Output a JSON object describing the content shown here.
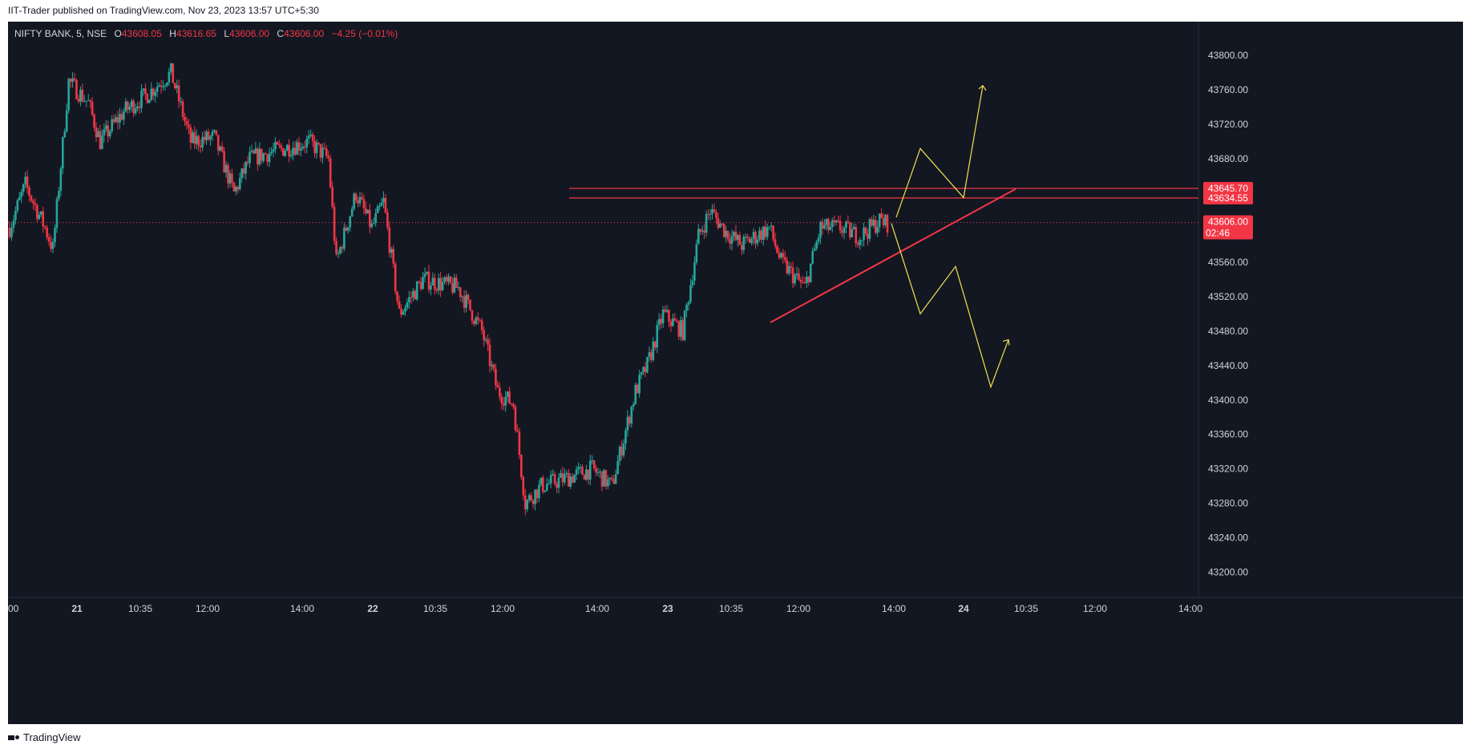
{
  "header": {
    "published": "IIT-Trader published on TradingView.com, Nov 23, 2023 13:57 UTC+5:30"
  },
  "legend": {
    "symbol": "NIFTY BANK, 5, NSE",
    "o_label": "O",
    "o_value": "43608.05",
    "h_label": "H",
    "h_value": "43616.65",
    "l_label": "L",
    "l_value": "43606.00",
    "c_label": "C",
    "c_value": "43606.00",
    "change": "−4.25 (−0.01%)"
  },
  "footer": {
    "brand": "TradingView",
    "logo_icon": "tradingview-logo-icon"
  },
  "colors": {
    "background": "#131722",
    "up": "#26a69a",
    "down": "#f23645",
    "axis_text": "#d1d4dc",
    "annotation": "#f2e34d",
    "level": "#f23645"
  },
  "chart_data": {
    "type": "candlestick",
    "symbol": "NIFTY BANK",
    "timeframe": "5",
    "exchange": "NSE",
    "ylim": [
      43180,
      43830
    ],
    "y_ticks": [
      "43800.00",
      "43760.00",
      "43720.00",
      "43680.00",
      "43640.00",
      "43600.00",
      "43560.00",
      "43520.00",
      "43480.00",
      "43440.00",
      "43400.00",
      "43360.00",
      "43320.00",
      "43280.00",
      "43240.00",
      "43200.00"
    ],
    "x_ticks": [
      "00",
      "21",
      "10:35",
      "12:00",
      "14:00",
      "22",
      "10:35",
      "12:00",
      "14:00",
      "23",
      "10:35",
      "12:00",
      "14:00",
      "24",
      "10:35",
      "12:00",
      "14:00"
    ],
    "price_labels": [
      {
        "value": "43645.70"
      },
      {
        "value": "43634.55"
      },
      {
        "value": "43606.00",
        "countdown": "02:46"
      }
    ],
    "horizontal_levels": [
      43645.7,
      43634.55
    ],
    "current_price": 43606.0,
    "key_points": [
      {
        "time": "20 close",
        "price": 43600
      },
      {
        "time": "21 open",
        "price": 43770
      },
      {
        "time": "21 high",
        "price": 43780
      },
      {
        "time": "22 early",
        "price": 43700
      },
      {
        "time": "22 mid",
        "price": 43540
      },
      {
        "time": "22 low",
        "price": 43235
      },
      {
        "time": "23 open",
        "price": 43510
      },
      {
        "time": "23 high",
        "price": 43640
      },
      {
        "time": "23 13:55",
        "price": 43606
      }
    ],
    "trendline": {
      "from_price": 43490,
      "to_price": 43645
    },
    "annotations": [
      {
        "type": "bullish-path",
        "points": [
          43612,
          43692,
          43635,
          43765
        ]
      },
      {
        "type": "bearish-path",
        "points": [
          43605,
          43500,
          43555,
          43415,
          43470
        ]
      }
    ]
  }
}
